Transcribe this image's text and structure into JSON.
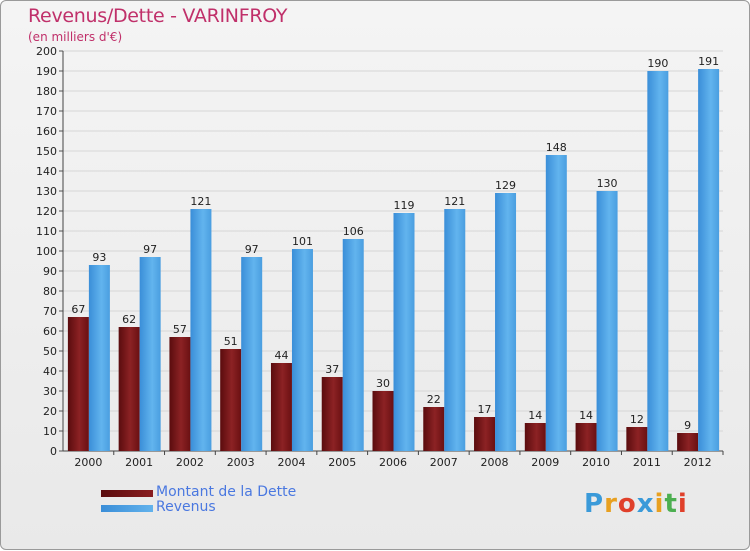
{
  "chart_data": {
    "type": "bar",
    "title": "Revenus/Dette - VARINFROY",
    "subtitle": "(en milliers d'€)",
    "categories": [
      "2000",
      "2001",
      "2002",
      "2003",
      "2004",
      "2005",
      "2006",
      "2007",
      "2008",
      "2009",
      "2010",
      "2011",
      "2012"
    ],
    "series": [
      {
        "name": "Montant de la Dette",
        "color": "#7a1416",
        "values": [
          67,
          62,
          57,
          51,
          44,
          37,
          30,
          22,
          17,
          14,
          14,
          12,
          9
        ]
      },
      {
        "name": "Revenus",
        "color": "#4a9ee0",
        "values": [
          93,
          97,
          121,
          97,
          101,
          106,
          119,
          121,
          129,
          148,
          130,
          190,
          191
        ]
      }
    ],
    "ylim": [
      0,
      200
    ],
    "yticks": [
      0,
      10,
      20,
      30,
      40,
      50,
      60,
      70,
      80,
      90,
      100,
      110,
      120,
      130,
      140,
      150,
      160,
      170,
      180,
      190,
      200
    ],
    "grid": true,
    "legend_position": "bottom-left"
  },
  "branding": {
    "logo_letters": [
      "P",
      "r",
      "o",
      "x",
      "i",
      "t",
      "i"
    ],
    "logo_colors": [
      "#3a9ad9",
      "#e8a020",
      "#e0402a",
      "#3a9ad9",
      "#e8a020",
      "#4caf50",
      "#e0402a"
    ]
  }
}
